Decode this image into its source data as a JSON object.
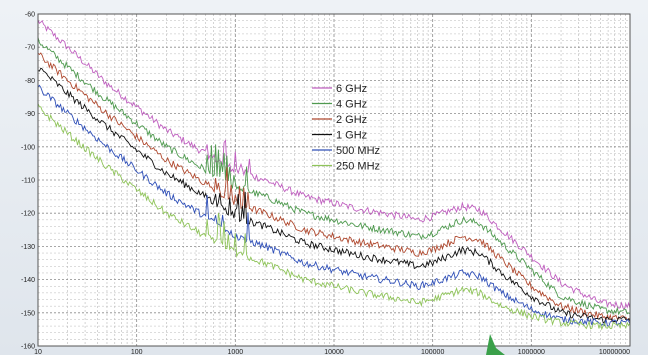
{
  "chart_data": {
    "type": "line",
    "title": "",
    "xlabel": "",
    "ylabel": "",
    "x_scale": "log",
    "xlim": [
      10,
      10000000
    ],
    "ylim": [
      -160,
      -60
    ],
    "grid": true,
    "legend_position": "center",
    "x_ticks": [
      10,
      100,
      1000,
      10000,
      100000,
      1000000,
      10000000
    ],
    "x_tick_labels": [
      "10",
      "100",
      "1000",
      "10000",
      "100000",
      "1000000",
      "10000000"
    ],
    "y_ticks": [
      -60,
      -70,
      -80,
      -90,
      -100,
      -110,
      -120,
      -130,
      -140,
      -150,
      -160
    ],
    "y_tick_labels": [
      "-60",
      "-70",
      "-80",
      "-90",
      "-100",
      "-110",
      "-120",
      "-130",
      "-140",
      "-150",
      "-160"
    ],
    "x": [
      10,
      20,
      50,
      100,
      200,
      500,
      1000,
      2000,
      5000,
      10000,
      20000,
      50000,
      70000,
      100000,
      200000,
      300000,
      500000,
      1000000,
      2000000,
      5000000,
      10000000
    ],
    "series": [
      {
        "name": "6 GHz",
        "color": "#c060c0",
        "values": [
          -62,
          -70,
          -81,
          -88,
          -95,
          -102,
          -107,
          -110,
          -115,
          -117,
          -119,
          -121,
          -122,
          -121,
          -118,
          -119,
          -125,
          -133,
          -141,
          -147,
          -148
        ]
      },
      {
        "name": "4 GHz",
        "color": "#4f9a4f",
        "values": [
          -68,
          -76,
          -86,
          -93,
          -100,
          -107,
          -112,
          -115,
          -120,
          -122,
          -124,
          -126,
          -127,
          -126,
          -122,
          -123,
          -129,
          -137,
          -145,
          -149,
          -150
        ]
      },
      {
        "name": "2 GHz",
        "color": "#b04a30",
        "values": [
          -72,
          -80,
          -90,
          -97,
          -104,
          -111,
          -117,
          -120,
          -125,
          -127,
          -129,
          -131,
          -132,
          -131,
          -127,
          -128,
          -134,
          -142,
          -148,
          -151,
          -152
        ]
      },
      {
        "name": "1 GHz",
        "color": "#111111",
        "values": [
          -76,
          -84,
          -94,
          -101,
          -108,
          -115,
          -121,
          -124,
          -129,
          -131,
          -133,
          -135,
          -136,
          -135,
          -131,
          -132,
          -138,
          -145,
          -150,
          -152,
          -152
        ]
      },
      {
        "name": "500 MHz",
        "color": "#3050b8",
        "values": [
          -82,
          -90,
          -100,
          -107,
          -114,
          -121,
          -127,
          -130,
          -135,
          -137,
          -139,
          -141,
          -142,
          -141,
          -138,
          -139,
          -144,
          -149,
          -152,
          -153,
          -153
        ]
      },
      {
        "name": "250 MHz",
        "color": "#8fc45a",
        "values": [
          -88,
          -96,
          -106,
          -113,
          -120,
          -127,
          -132,
          -135,
          -140,
          -142,
          -144,
          -146,
          -147,
          -146,
          -143,
          -144,
          -148,
          -151,
          -153,
          -154,
          -154
        ]
      }
    ]
  },
  "colors": {
    "plot_background": "#ffffff",
    "grid": "#b8b8b8",
    "arrow": "#3aa04a"
  }
}
